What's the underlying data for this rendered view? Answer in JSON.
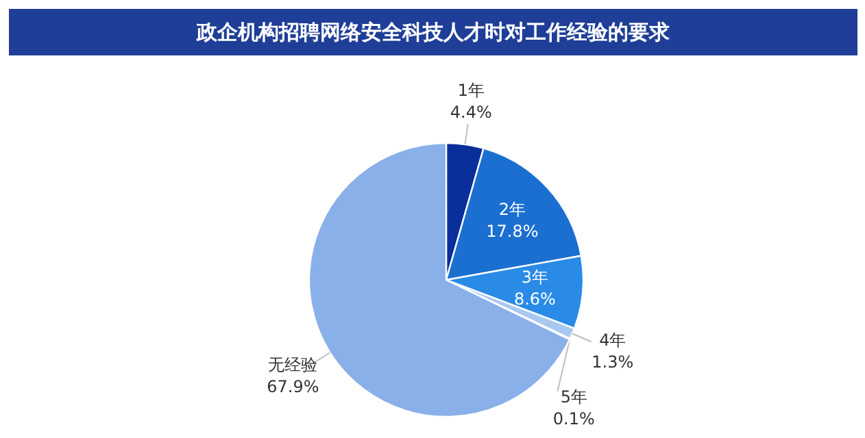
{
  "chart_data": {
    "type": "pie",
    "title": "政企机构招聘网络安全科技人才时对工作经验的要求",
    "categories": [
      "1年",
      "2年",
      "3年",
      "4年",
      "5年",
      "无经验"
    ],
    "values": [
      4.4,
      17.8,
      8.6,
      1.3,
      0.1,
      67.9
    ],
    "value_labels": [
      "4.4%",
      "17.8%",
      "8.6%",
      "1.3%",
      "0.1%",
      "67.9%"
    ],
    "colors": [
      "#0b2f9a",
      "#1b6fd0",
      "#2a8be6",
      "#a9c8f0",
      "#c9dcf5",
      "#8ab0ea"
    ]
  }
}
